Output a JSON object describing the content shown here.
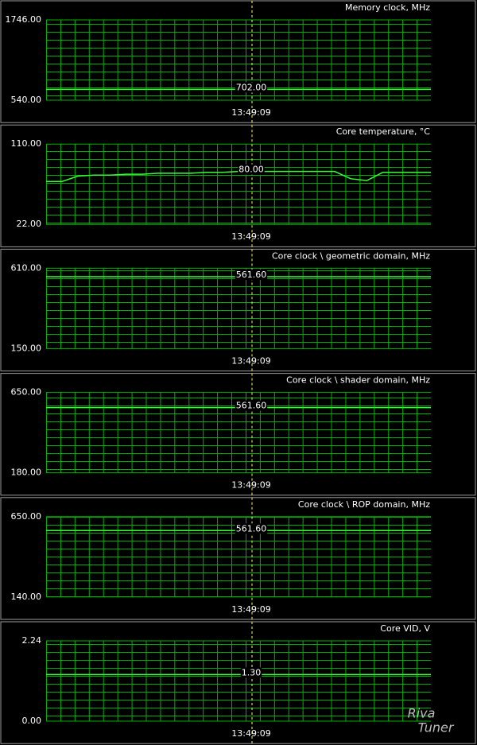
{
  "chart_data": [
    {
      "type": "line",
      "title": "Memory clock, MHz",
      "ylim": [
        540,
        1746
      ],
      "yticks": [
        {
          "value": 540,
          "label": "540.00"
        },
        {
          "value": 1746,
          "label": "1746.00"
        }
      ],
      "cursor": {
        "value": 702,
        "label": "702.00"
      },
      "cursor_time": "13:49:09",
      "series": [
        {
          "color": "#33ff33",
          "values": [
            702,
            702
          ]
        }
      ]
    },
    {
      "type": "line",
      "title": "Core temperature, °C",
      "ylim": [
        22,
        110
      ],
      "yticks": [
        {
          "value": 22,
          "label": "22.00"
        },
        {
          "value": 110,
          "label": "110.00"
        }
      ],
      "cursor": {
        "value": 80,
        "label": "80.00"
      },
      "cursor_time": "13:49:09",
      "series": [
        {
          "color": "#33ff33",
          "values": [
            69,
            69,
            75,
            76,
            76,
            77,
            77,
            78,
            78,
            78,
            79,
            79,
            80,
            80,
            80,
            80,
            80,
            80,
            80,
            72,
            70,
            79,
            79,
            79,
            79
          ]
        }
      ]
    },
    {
      "type": "line",
      "title": "Core clock \\ geometric domain, MHz",
      "ylim": [
        150,
        610
      ],
      "yticks": [
        {
          "value": 150,
          "label": "150.00"
        },
        {
          "value": 610,
          "label": "610.00"
        }
      ],
      "cursor": {
        "value": 561.6,
        "label": "561.60"
      },
      "cursor_time": "13:49:09",
      "series": [
        {
          "color": "#33ff33",
          "values": [
            561.6,
            561.6
          ]
        }
      ]
    },
    {
      "type": "line",
      "title": "Core clock \\ shader domain, MHz",
      "ylim": [
        180,
        650
      ],
      "yticks": [
        {
          "value": 180,
          "label": "180.00"
        },
        {
          "value": 650,
          "label": "650.00"
        }
      ],
      "cursor": {
        "value": 561.6,
        "label": "561.60"
      },
      "cursor_time": "13:49:09",
      "series": [
        {
          "color": "#33ff33",
          "values": [
            561.6,
            561.6
          ]
        }
      ]
    },
    {
      "type": "line",
      "title": "Core clock \\ ROP domain, MHz",
      "ylim": [
        140,
        650
      ],
      "yticks": [
        {
          "value": 140,
          "label": "140.00"
        },
        {
          "value": 650,
          "label": "650.00"
        }
      ],
      "cursor": {
        "value": 561.6,
        "label": "561.60"
      },
      "cursor_time": "13:49:09",
      "series": [
        {
          "color": "#33ff33",
          "values": [
            561.6,
            561.6
          ]
        }
      ]
    },
    {
      "type": "line",
      "title": "Core VID, V",
      "ylim": [
        0,
        2.24
      ],
      "yticks": [
        {
          "value": 0,
          "label": "0.00"
        },
        {
          "value": 2.24,
          "label": "2.24"
        }
      ],
      "cursor": {
        "value": 1.3,
        "label": "1.30"
      },
      "cursor_time": "13:49:09",
      "series": [
        {
          "color": "#33ff33",
          "values": [
            1.3,
            1.3
          ]
        }
      ]
    }
  ],
  "watermark": [
    "Riva",
    "Tuner"
  ]
}
